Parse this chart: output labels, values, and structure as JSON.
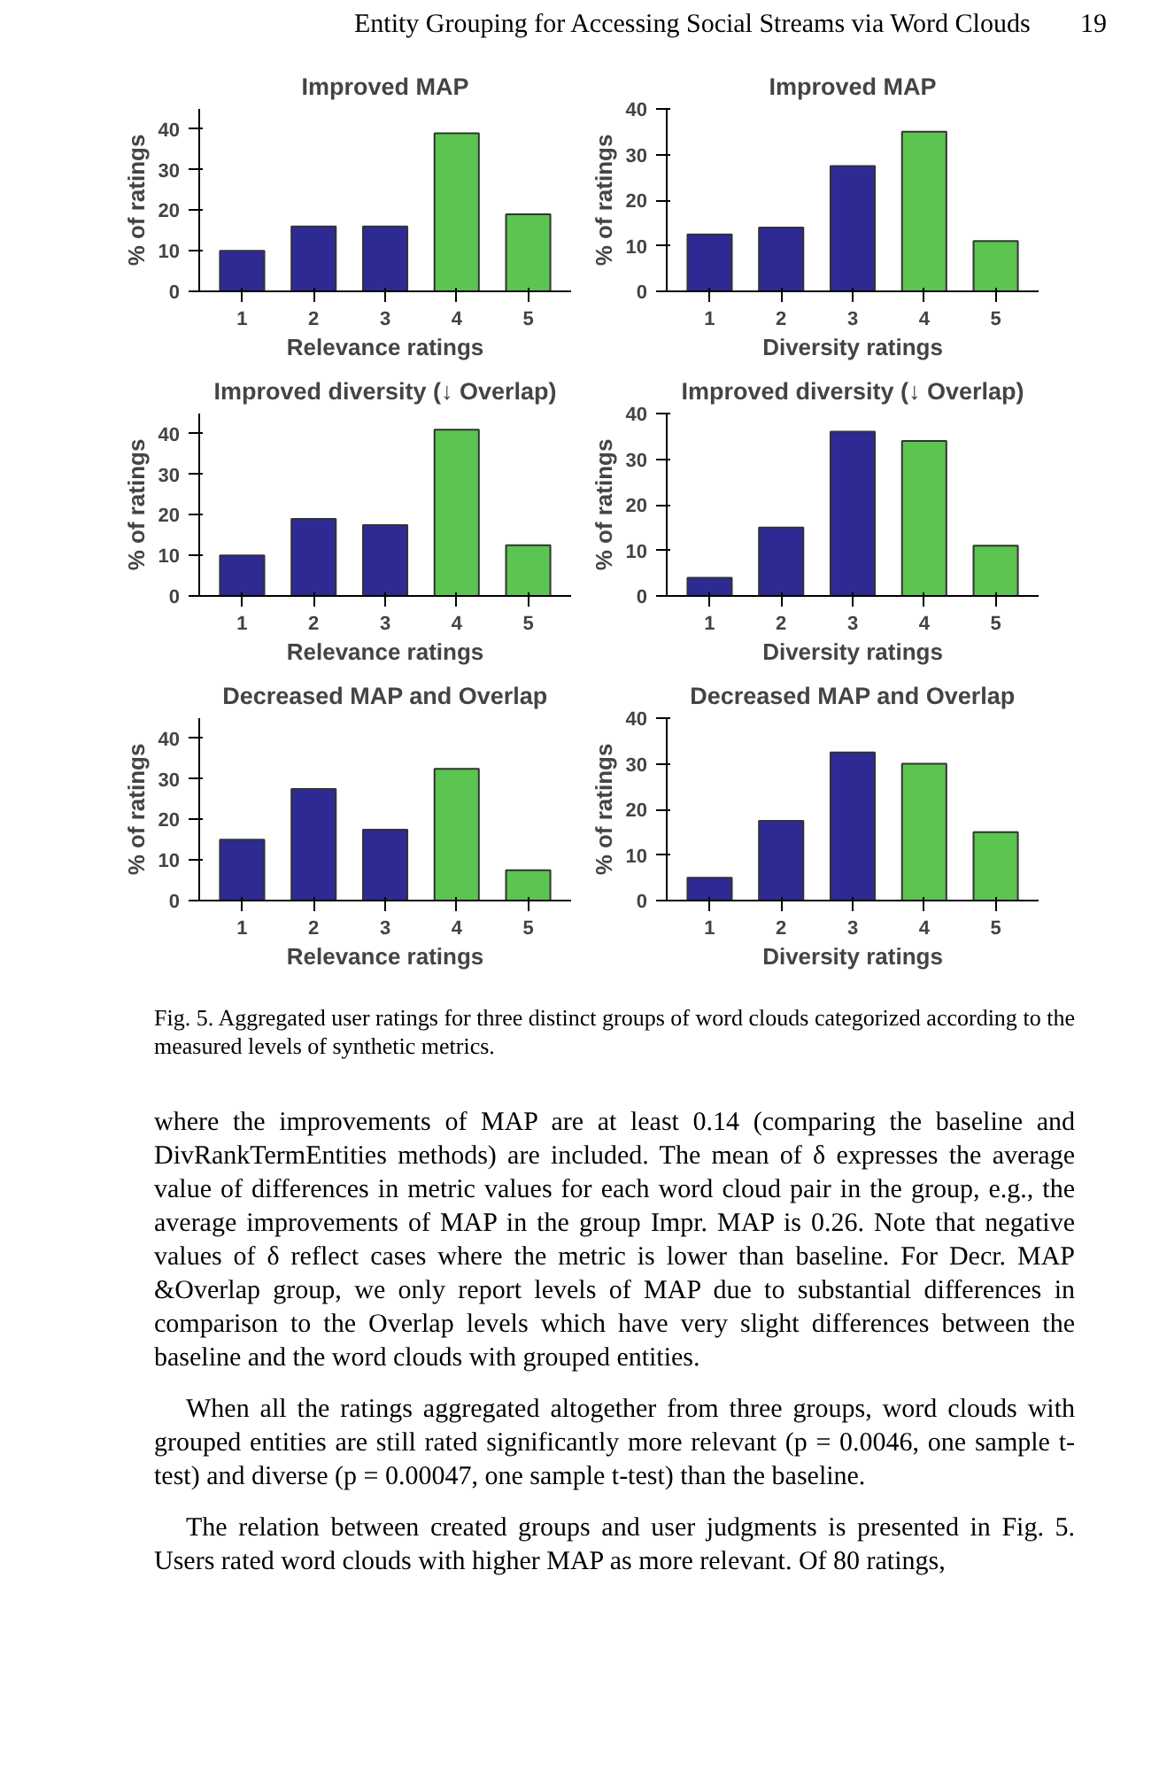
{
  "chart_data": [
    {
      "type": "bar",
      "title": "Improved MAP",
      "xlabel": "Relevance ratings",
      "ylabel": "% of ratings",
      "categories": [
        "1",
        "2",
        "3",
        "4",
        "5"
      ],
      "values": [
        10,
        16,
        16,
        39,
        19
      ],
      "colors": [
        "#2e2a94",
        "#2e2a94",
        "#2e2a94",
        "#5cc451",
        "#5cc451"
      ],
      "ylim": [
        0,
        45
      ],
      "yticks": [
        0,
        10,
        20,
        30,
        40
      ],
      "annotations": [
        "Entity Grouping for Accessing Social Streams via Word Clouds",
        "19"
      ]
    },
    {
      "type": "bar",
      "title": "Improved MAP",
      "xlabel": "Diversity ratings",
      "ylabel": "% of ratings",
      "categories": [
        "1",
        "2",
        "3",
        "4",
        "5"
      ],
      "values": [
        12.5,
        14,
        27.5,
        35,
        11
      ],
      "colors": [
        "#2e2a94",
        "#2e2a94",
        "#2e2a94",
        "#5cc451",
        "#5cc451"
      ],
      "ylim": [
        0,
        40
      ],
      "yticks": [
        0,
        10,
        20,
        30,
        40
      ]
    },
    {
      "type": "bar",
      "title": "Improved diversity (↓ Overlap)",
      "xlabel": "Relevance ratings",
      "ylabel": "% of ratings",
      "categories": [
        "1",
        "2",
        "3",
        "4",
        "5"
      ],
      "values": [
        10,
        19,
        17.5,
        41,
        12.5
      ],
      "colors": [
        "#2e2a94",
        "#2e2a94",
        "#2e2a94",
        "#5cc451",
        "#5cc451"
      ],
      "ylim": [
        0,
        45
      ],
      "yticks": [
        0,
        10,
        20,
        30,
        40
      ]
    },
    {
      "type": "bar",
      "title": "Improved diversity (↓ Overlap)",
      "xlabel": "Diversity ratings",
      "ylabel": "% of ratings",
      "categories": [
        "1",
        "2",
        "3",
        "4",
        "5"
      ],
      "values": [
        4,
        15,
        36,
        34,
        11
      ],
      "colors": [
        "#2e2a94",
        "#2e2a94",
        "#2e2a94",
        "#5cc451",
        "#5cc451"
      ],
      "ylim": [
        0,
        40
      ],
      "yticks": [
        0,
        10,
        20,
        30,
        40
      ]
    },
    {
      "type": "bar",
      "title": "Decreased MAP and Overlap",
      "xlabel": "Relevance ratings",
      "ylabel": "% of ratings",
      "categories": [
        "1",
        "2",
        "3",
        "4",
        "5"
      ],
      "values": [
        15,
        27.5,
        17.5,
        32.5,
        7.5
      ],
      "colors": [
        "#2e2a94",
        "#2e2a94",
        "#2e2a94",
        "#5cc451",
        "#5cc451"
      ],
      "ylim": [
        0,
        45
      ],
      "yticks": [
        0,
        10,
        20,
        30,
        40
      ]
    },
    {
      "type": "bar",
      "title": "Decreased MAP and Overlap",
      "xlabel": "Diversity ratings",
      "ylabel": "% of ratings",
      "categories": [
        "1",
        "2",
        "3",
        "4",
        "5"
      ],
      "values": [
        5,
        17.5,
        32.5,
        30,
        15
      ],
      "colors": [
        "#2e2a94",
        "#2e2a94",
        "#2e2a94",
        "#5cc451",
        "#5cc451"
      ],
      "ylim": [
        0,
        40
      ],
      "yticks": [
        0,
        10,
        20,
        30,
        40
      ],
      "annotations": [
        "Fig. 5. Aggregated user ratings for three distinct groups of word clouds categorized according to the measured levels of synthetic metrics.",
        "where the improvements of MAP are at least 0.14 (comparing the baseline and DivRankTermEntities methods) are included. The mean of δ expresses the average value of differences in metric values for each word cloud pair in the group, e.g., the average improvements of MAP in the group Impr. MAP is 0.26. Note that negative values of δ reflect cases where the metric is lower than baseline. For Decr. MAP &Overlap group, we only report levels of MAP due to substantial differences in comparison to the Overlap levels which have very slight differences between the baseline and the word clouds with grouped entities.",
        "When all the ratings aggregated altogether from three groups, word clouds with grouped entities are still rated significantly more relevant (p = 0.0046, one sample t-test) and diverse (p = 0.00047, one sample t-test) than the baseline.",
        "The relation between created groups and user judgments is presented in Fig. 5. Users rated word clouds with higher MAP as more relevant. Of 80 ratings,"
      ]
    }
  ]
}
